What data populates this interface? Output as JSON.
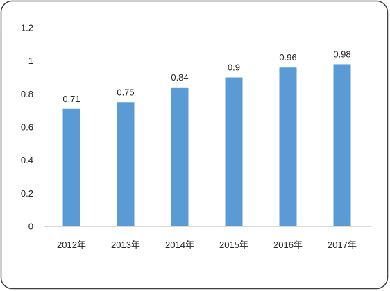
{
  "chart_data": {
    "type": "bar",
    "categories": [
      "2012年",
      "2013年",
      "2014年",
      "2015年",
      "2016年",
      "2017年"
    ],
    "values": [
      0.71,
      0.75,
      0.84,
      0.9,
      0.96,
      0.98
    ],
    "data_labels": [
      "0.71",
      "0.75",
      "0.84",
      "0.9",
      "0.96",
      "0.98"
    ],
    "y_ticks": [
      "0",
      "0.2",
      "0.4",
      "0.6",
      "0.8",
      "1",
      "1.2"
    ],
    "ylim": [
      0,
      1.2
    ],
    "grid": false
  },
  "colors": {
    "bar": "#5B9BD5",
    "axis_line": "#D9D9D9",
    "text": "#262626",
    "frame": "#404040"
  }
}
